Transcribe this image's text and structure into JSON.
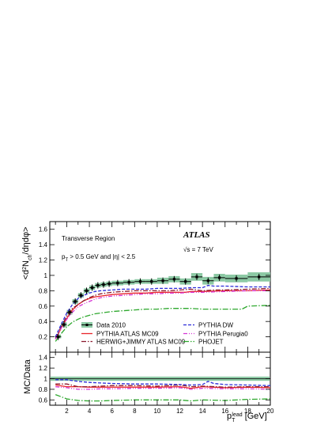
{
  "chart_data": [
    {
      "type": "line",
      "ylabel_parts": {
        "a": "<d",
        "sup": "2",
        "b": "N",
        "sub": "ch",
        "c": "/dηdφ>"
      },
      "ylim": [
        0,
        1.7
      ],
      "xlim": [
        0.5,
        20
      ],
      "yticks": [
        "0.2",
        "0.4",
        "0.6",
        "0.8",
        "1",
        "1.2",
        "1.4",
        "1.6"
      ],
      "ytick_values": [
        0.2,
        0.4,
        0.6,
        0.8,
        1.0,
        1.2,
        1.4,
        1.6
      ],
      "annotations": {
        "region": "Transverse Region",
        "atlas": "ATLAS",
        "energy": "√s = 7 TeV",
        "cuts_pt": "p",
        "cuts_sub": "T",
        "cuts_rest": " > 0.5  GeV and |η| < 2.5"
      },
      "data": {
        "name": "Data 2010",
        "x": [
          1.25,
          1.75,
          2.25,
          2.75,
          3.25,
          3.75,
          4.25,
          4.75,
          5.25,
          5.75,
          6.5,
          7.5,
          8.5,
          9.5,
          10.5,
          11.5,
          12.5,
          13.5,
          14.5,
          15.5,
          17,
          19
        ],
        "y": [
          0.2,
          0.36,
          0.52,
          0.66,
          0.74,
          0.8,
          0.84,
          0.87,
          0.88,
          0.89,
          0.9,
          0.91,
          0.92,
          0.92,
          0.93,
          0.95,
          0.92,
          0.98,
          0.93,
          0.97,
          0.96,
          0.98
        ],
        "syst": [
          0.02,
          0.03,
          0.03,
          0.03,
          0.03,
          0.03,
          0.03,
          0.03,
          0.03,
          0.03,
          0.03,
          0.03,
          0.03,
          0.03,
          0.04,
          0.04,
          0.04,
          0.05,
          0.05,
          0.05,
          0.05,
          0.06
        ],
        "color": "#3a9a5b",
        "band_color": "#8cc9a4"
      },
      "series": [
        {
          "name": "PYTHIA ATLAS MC09",
          "style": "solid",
          "color": "#e8262a",
          "x": [
            1,
            1.5,
            2,
            2.5,
            3,
            3.5,
            4,
            4.5,
            5,
            6,
            7,
            8,
            9,
            10,
            11,
            12,
            12.5,
            13,
            14,
            16,
            18,
            20
          ],
          "y": [
            0.17,
            0.31,
            0.44,
            0.55,
            0.62,
            0.67,
            0.7,
            0.72,
            0.73,
            0.75,
            0.76,
            0.77,
            0.77,
            0.78,
            0.78,
            0.78,
            0.78,
            0.79,
            0.79,
            0.8,
            0.8,
            0.81
          ]
        },
        {
          "name": "HERWIG+JIMMY ATLAS MC09",
          "style": "dashdot",
          "color": "#8b1a2e",
          "x": [
            1,
            1.5,
            2,
            2.5,
            3,
            3.5,
            4,
            4.5,
            5,
            6,
            7,
            8,
            9,
            10,
            11,
            12,
            13,
            14,
            15,
            16,
            18,
            20
          ],
          "y": [
            0.18,
            0.33,
            0.47,
            0.57,
            0.62,
            0.67,
            0.71,
            0.74,
            0.76,
            0.78,
            0.79,
            0.8,
            0.8,
            0.8,
            0.8,
            0.81,
            0.82,
            0.8,
            0.81,
            0.81,
            0.82,
            0.83
          ]
        },
        {
          "name": "PYTHIA DW",
          "style": "dashed",
          "color": "#2b2bd8",
          "x": [
            1,
            1.5,
            2,
            2.5,
            3,
            3.5,
            4,
            4.5,
            5,
            6,
            7,
            8,
            9,
            10,
            11,
            12,
            13,
            14,
            14.5,
            15,
            16,
            18,
            20
          ],
          "y": [
            0.2,
            0.36,
            0.51,
            0.62,
            0.7,
            0.74,
            0.77,
            0.79,
            0.8,
            0.81,
            0.82,
            0.82,
            0.82,
            0.83,
            0.83,
            0.83,
            0.84,
            0.84,
            0.87,
            0.86,
            0.86,
            0.85,
            0.85
          ]
        },
        {
          "name": "PYTHIA Perugia0",
          "style": "dashdotdot",
          "color": "#d534d5",
          "x": [
            1,
            1.5,
            2,
            2.5,
            3,
            3.5,
            4,
            4.5,
            5,
            6,
            7,
            8,
            9,
            10,
            11,
            12,
            13,
            14,
            16,
            18,
            20
          ],
          "y": [
            0.17,
            0.31,
            0.43,
            0.52,
            0.59,
            0.63,
            0.66,
            0.69,
            0.71,
            0.73,
            0.74,
            0.75,
            0.76,
            0.76,
            0.77,
            0.77,
            0.78,
            0.78,
            0.79,
            0.8,
            0.8
          ]
        },
        {
          "name": "PHOJET",
          "style": "dashdotlong",
          "color": "#2ea82e",
          "x": [
            1,
            1.5,
            2,
            2.5,
            3,
            3.5,
            4,
            4.5,
            5,
            6,
            7,
            8,
            9,
            10,
            11,
            12,
            13,
            14,
            16,
            17.5,
            18,
            20
          ],
          "y": [
            0.14,
            0.24,
            0.33,
            0.39,
            0.43,
            0.46,
            0.48,
            0.5,
            0.51,
            0.53,
            0.54,
            0.55,
            0.56,
            0.56,
            0.57,
            0.57,
            0.57,
            0.56,
            0.56,
            0.56,
            0.6,
            0.61
          ]
        }
      ]
    },
    {
      "type": "line",
      "ylabel": "MC/Data",
      "xlabel_parts": {
        "a": "p",
        "sub": "T",
        "sup": "lead",
        "b": " [GeV]"
      },
      "ylim": [
        0.5,
        1.5
      ],
      "xlim": [
        0.5,
        20
      ],
      "yticks": [
        "0.6",
        "0.8",
        "1",
        "1.2",
        "1.4"
      ],
      "ytick_values": [
        0.6,
        0.8,
        1.0,
        1.2,
        1.4
      ],
      "xticks": [
        "2",
        "4",
        "6",
        "8",
        "10",
        "12",
        "14",
        "16",
        "18",
        "20"
      ],
      "xtick_values": [
        2,
        4,
        6,
        8,
        10,
        12,
        14,
        16,
        18,
        20
      ],
      "band": {
        "low": 0.96,
        "high": 1.04,
        "color": "#8cc9a4"
      },
      "series": [
        {
          "name": "PYTHIA ATLAS MC09",
          "style": "solid",
          "color": "#e8262a",
          "x": [
            1,
            2,
            3,
            4,
            5,
            6,
            8,
            10,
            12,
            13,
            14,
            16,
            18,
            20
          ],
          "y": [
            0.88,
            0.85,
            0.85,
            0.84,
            0.84,
            0.84,
            0.84,
            0.84,
            0.85,
            0.82,
            0.85,
            0.83,
            0.84,
            0.83
          ]
        },
        {
          "name": "HERWIG+JIMMY ATLAS MC09",
          "style": "dashdot",
          "color": "#8b1a2e",
          "x": [
            1,
            2,
            3,
            4,
            5,
            6,
            8,
            10,
            12,
            13,
            14,
            16,
            18,
            20
          ],
          "y": [
            0.9,
            0.9,
            0.85,
            0.85,
            0.86,
            0.87,
            0.87,
            0.86,
            0.88,
            0.85,
            0.86,
            0.84,
            0.85,
            0.85
          ]
        },
        {
          "name": "PYTHIA DW",
          "style": "dashed",
          "color": "#2b2bd8",
          "x": [
            1,
            2,
            3,
            4,
            5,
            6,
            8,
            10,
            12,
            13,
            14,
            14.5,
            15,
            16,
            18,
            20
          ],
          "y": [
            0.98,
            0.98,
            0.95,
            0.93,
            0.92,
            0.91,
            0.9,
            0.9,
            0.89,
            0.88,
            0.89,
            0.95,
            0.91,
            0.89,
            0.88,
            0.87
          ]
        },
        {
          "name": "PYTHIA Perugia0",
          "style": "dashdotdot",
          "color": "#d534d5",
          "x": [
            1,
            2,
            3,
            4,
            5,
            6,
            8,
            10,
            12,
            13,
            14,
            16,
            18,
            20
          ],
          "y": [
            0.85,
            0.83,
            0.8,
            0.8,
            0.81,
            0.81,
            0.82,
            0.82,
            0.83,
            0.8,
            0.82,
            0.81,
            0.81,
            0.8
          ]
        },
        {
          "name": "PHOJET",
          "style": "dashdotlong",
          "color": "#2ea82e",
          "x": [
            1,
            2,
            3,
            4,
            5,
            6,
            8,
            10,
            12,
            13,
            14,
            16,
            18,
            20
          ],
          "y": [
            0.7,
            0.62,
            0.59,
            0.58,
            0.58,
            0.59,
            0.6,
            0.6,
            0.6,
            0.58,
            0.6,
            0.59,
            0.61,
            0.62
          ]
        }
      ]
    }
  ]
}
